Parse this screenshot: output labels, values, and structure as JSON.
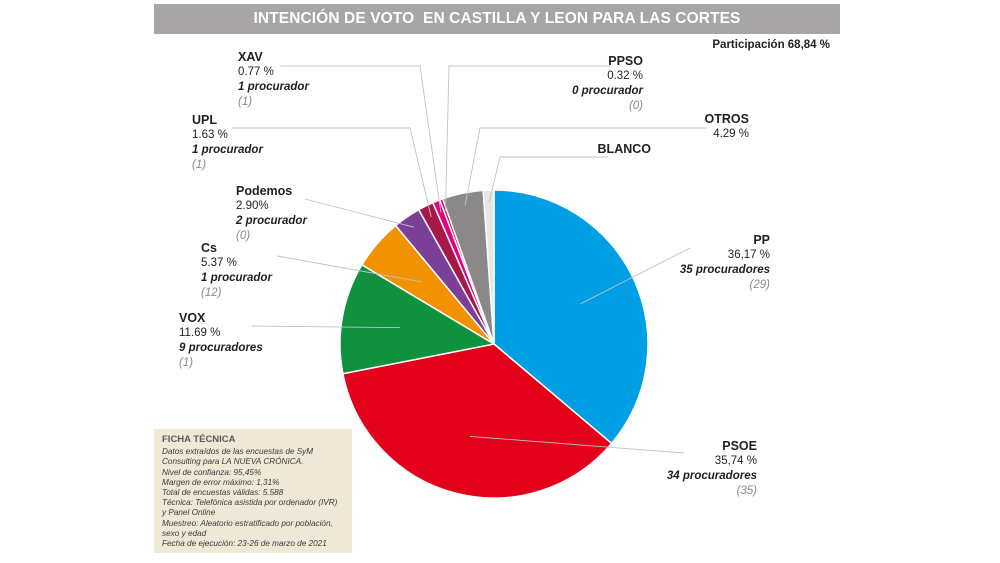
{
  "title": "INTENCIÓN DE VOTO  EN CASTILLA Y LEON PARA LAS CORTES",
  "participation": "Participación 68,84 %",
  "chart_data": {
    "type": "pie",
    "title": "INTENCIÓN DE VOTO  EN CASTILLA Y LEON PARA LAS CORTES",
    "slices": [
      {
        "name": "PP",
        "value": 36.17,
        "pct": "36,17 %",
        "seats": "35 procuradores",
        "prev": "(29)",
        "color": "#009fe3"
      },
      {
        "name": "PSOE",
        "value": 35.74,
        "pct": "35,74 %",
        "seats": "34 procuradores",
        "prev": "(35)",
        "color": "#e2001a"
      },
      {
        "name": "VOX",
        "value": 11.69,
        "pct": "11.69 %",
        "seats": "9 procuradores",
        "prev": "(1)",
        "color": "#0f913e"
      },
      {
        "name": "Cs",
        "value": 5.37,
        "pct": "5.37 %",
        "seats": "1 procurador",
        "prev": "(12)",
        "color": "#f39200"
      },
      {
        "name": "Podemos",
        "value": 2.9,
        "pct": "2.90%",
        "seats": "2 procurador",
        "prev": "(0)",
        "color": "#7b3f98"
      },
      {
        "name": "UPL",
        "value": 1.63,
        "pct": "1.63 %",
        "seats": "1 procurador",
        "prev": "(1)",
        "color": "#a6174a"
      },
      {
        "name": "XAV",
        "value": 0.77,
        "pct": "0.77 %",
        "seats": "1 procurador",
        "prev": "(1)",
        "color": "#e6007e"
      },
      {
        "name": "PPSO",
        "value": 0.32,
        "pct": "0.32 %",
        "seats": "0 procurador",
        "prev": "(0)",
        "color": "#d6004a"
      },
      {
        "name": "OTROS",
        "value": 4.29,
        "pct": "4.29 %",
        "color": "#8a8888"
      },
      {
        "name": "BLANCO",
        "value": 1.12,
        "color": "#e9e6e6"
      }
    ]
  },
  "ficha": {
    "heading": "FICHA TÉCNICA",
    "lines": [
      "Datos extraídos de las encuestas de SyM",
      "Consulting para LA NUEVA CRÓNICA.",
      "Nivel de confianza: 95,45%",
      "Margen de error máximo: 1,31%",
      "Total de encuestas válidas: 5.588",
      "Técnica: Telefónica asistida por ordenador (IVR)",
      "y Panel Online",
      "Muestreo: Aleatorio estratificado por población,",
      "sexo y edad",
      "Fecha de ejecución: 23-26 de marzo de 2021"
    ]
  }
}
